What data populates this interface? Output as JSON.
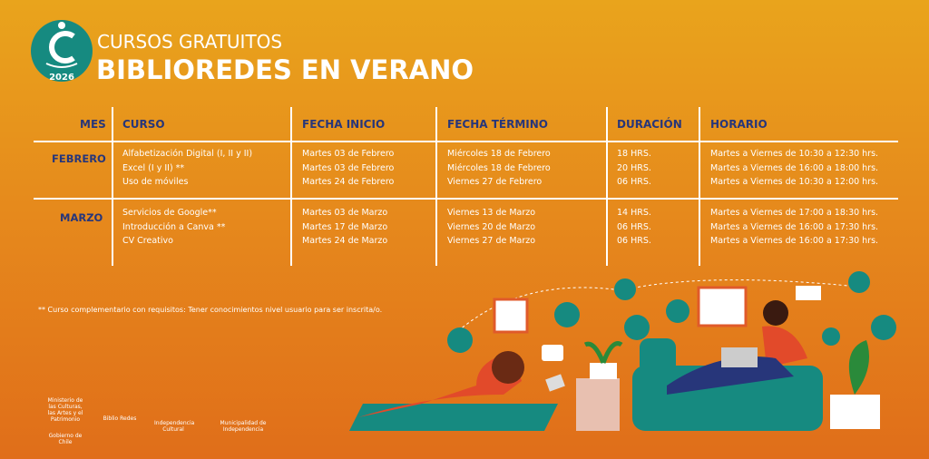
{
  "header": {
    "badge_year": "2026",
    "subtitle": "CURSOS GRATUITOS",
    "title": "BIBLIOREDES EN VERANO"
  },
  "table": {
    "headers": [
      "MES",
      "CURSO",
      "FECHA INICIO",
      "FECHA TÉRMINO",
      "DURACIÓN",
      "HORARIO"
    ],
    "groups": [
      {
        "month": "FEBRERO",
        "rows": [
          [
            "Alfabetización Digital (I, II y II)",
            "Martes 03 de Febrero",
            "Miércoles 18 de Febrero",
            "18 HRS.",
            "Martes a Viernes de 10:30 a 12:30 hrs."
          ],
          [
            "Excel (I y II) **",
            "Martes 03 de Febrero",
            "Miércoles 18 de Febrero",
            "20 HRS.",
            "Martes a Viernes de 16:00 a 18:00 hrs."
          ],
          [
            "Uso de móviles",
            "Martes 24 de Febrero",
            "Viernes 27 de Febrero",
            "06 HRS.",
            "Martes a Viernes de 10:30 a 12:00 hrs."
          ]
        ]
      },
      {
        "month": "MARZO",
        "rows": [
          [
            "Servicios de Google**",
            "Martes 03 de Marzo",
            "Viernes 13 de Marzo",
            "14 HRS.",
            "Martes a Viernes de 17:00 a 18:30 hrs."
          ],
          [
            "Introducción a Canva **",
            "Martes 17 de Marzo",
            "Viernes 20 de Marzo",
            "06 HRS.",
            "Martes a Viernes de 16:00 a 17:30 hrs."
          ],
          [
            "CV Creativo",
            "Martes 24 de Marzo",
            "Viernes 27 de Marzo",
            "06 HRS.",
            "Martes a Viernes de 16:00 a 17:30 hrs."
          ]
        ]
      }
    ]
  },
  "footnote": "** Curso complementario con requisitos: Tener conocimientos nivel usuario para ser inscrita/o.",
  "logos": [
    "Ministerio de las Culturas, las Artes y el Patrimonio",
    "Gobierno de Chile",
    "Biblio Redes",
    "Independencia Cultural",
    "Municipalidad de Independencia"
  ]
}
